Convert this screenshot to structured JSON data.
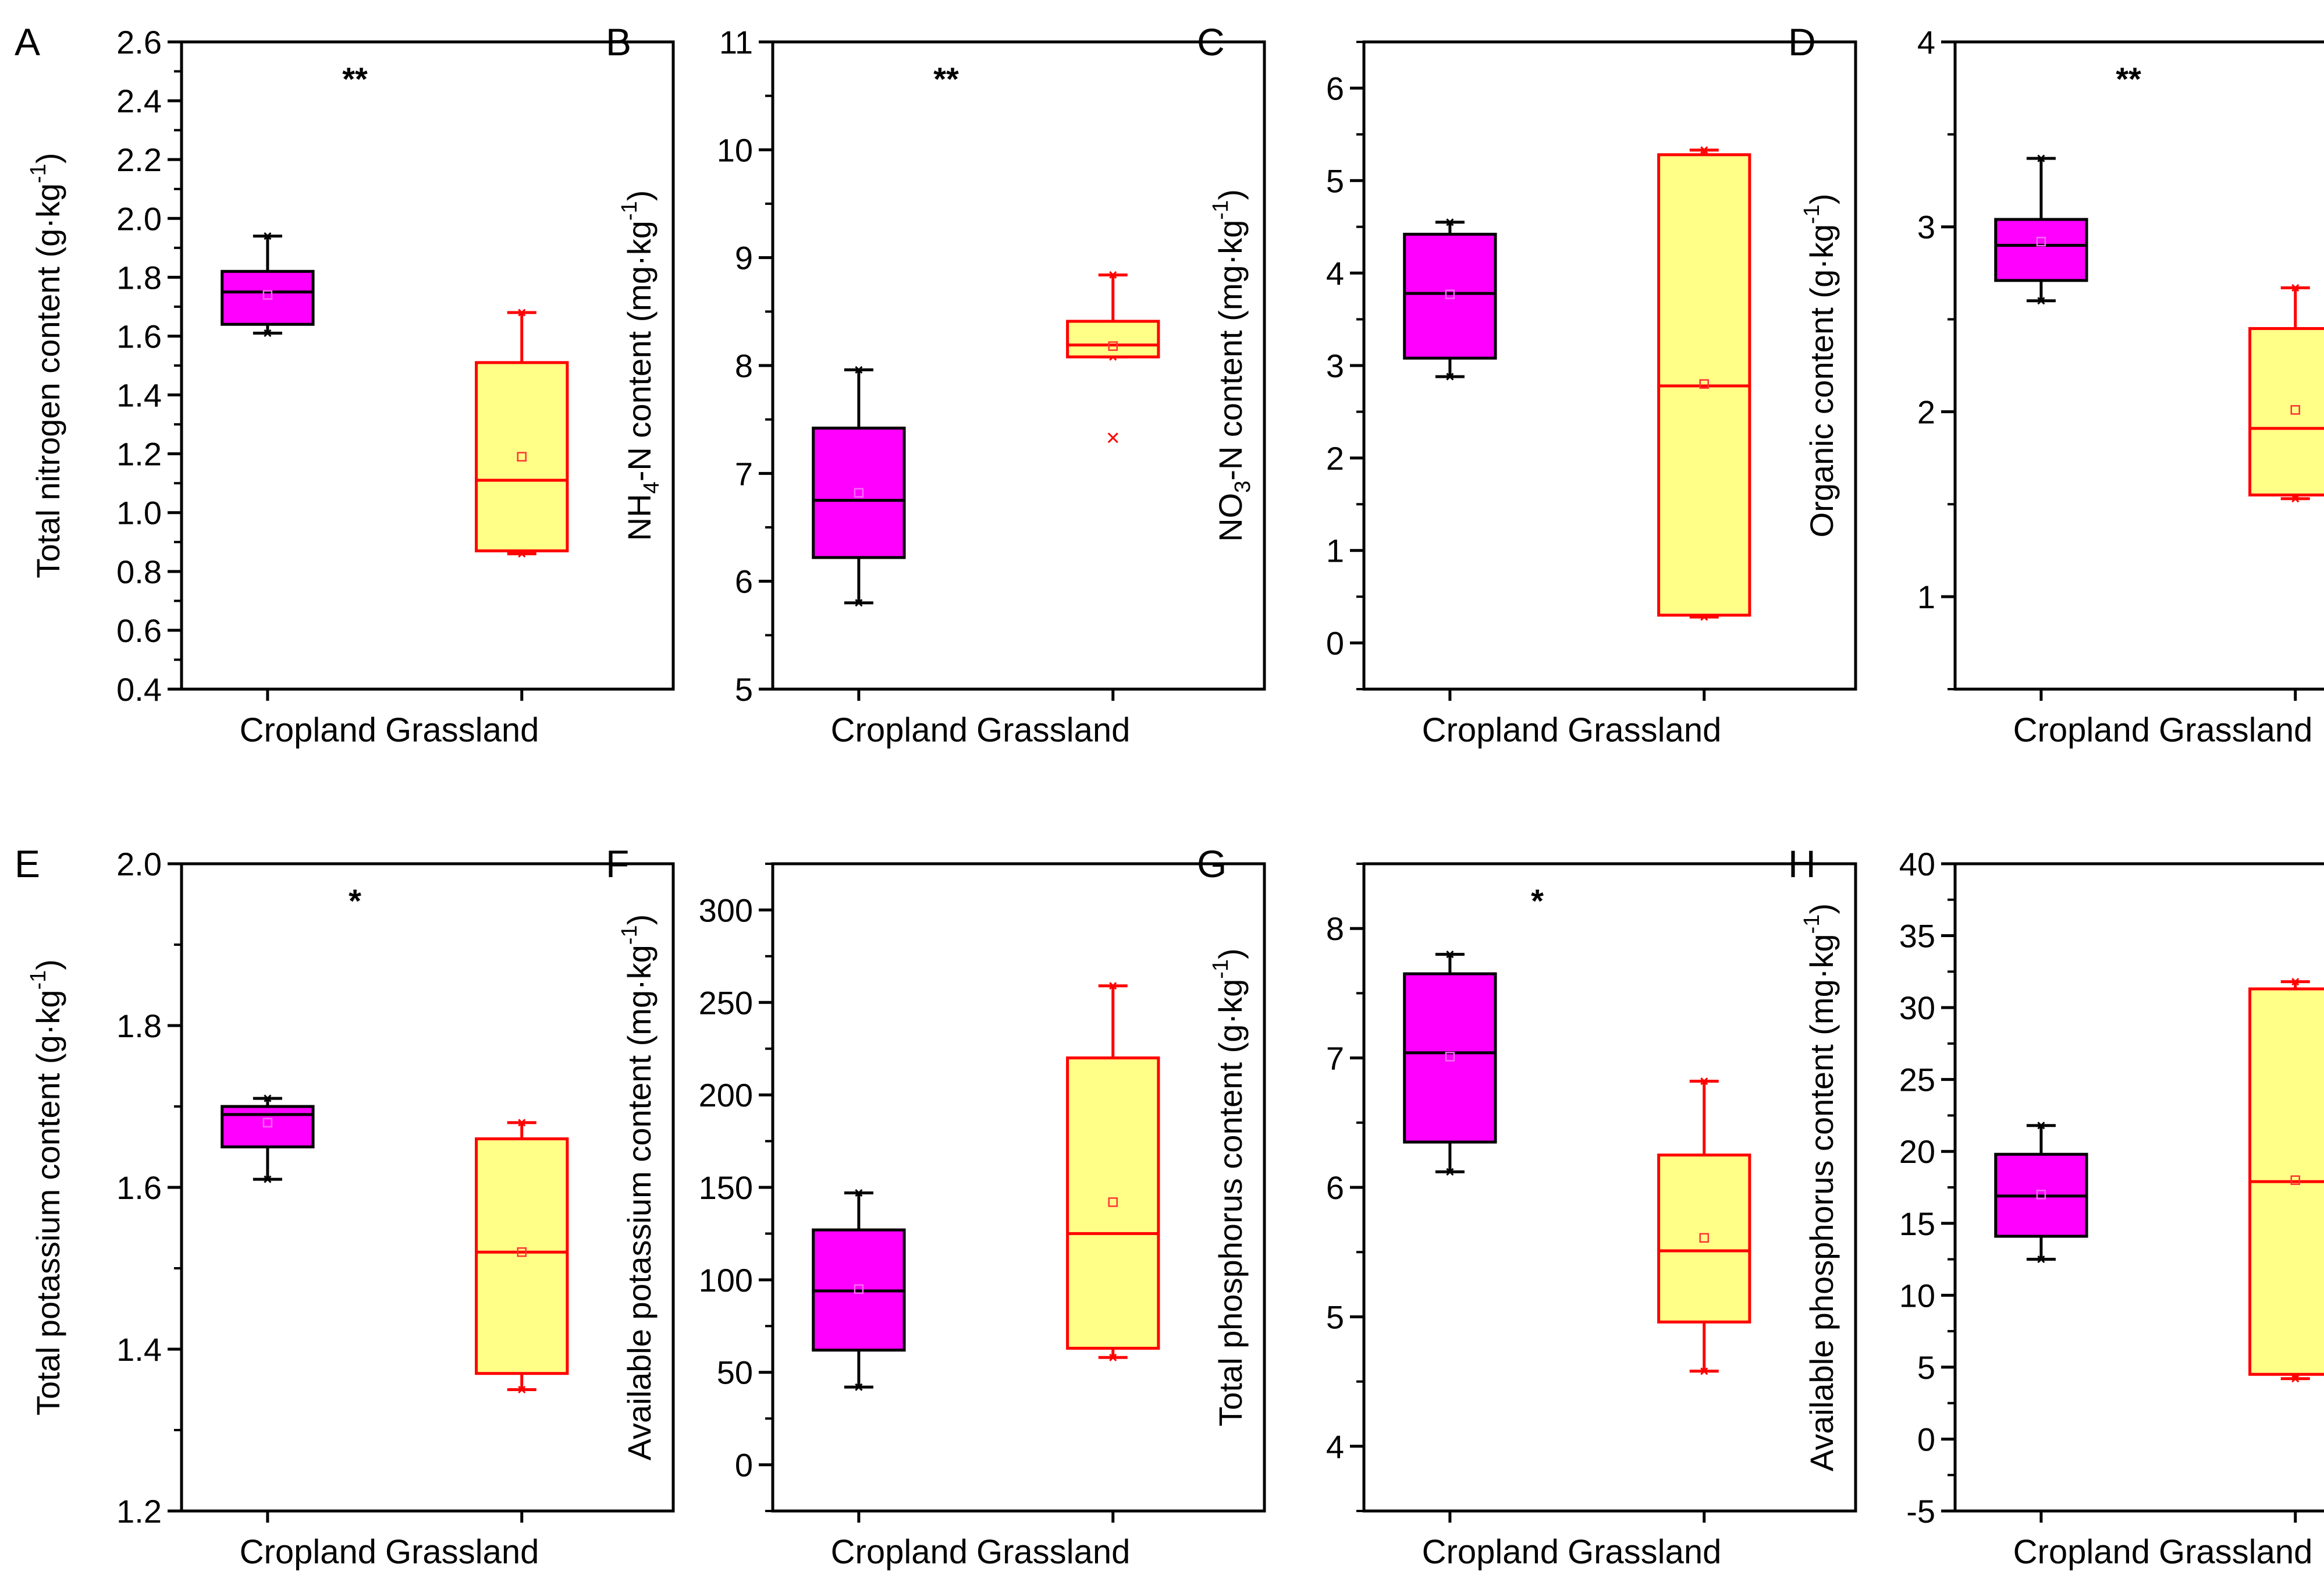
{
  "colors": {
    "cropland_fill": "#ff00ff",
    "cropland_stroke": "#000000",
    "grassland_fill": "#ffff88",
    "grassland_stroke": "#ff0000"
  },
  "chart_data": [
    {
      "type": "box",
      "panel": "A",
      "ylabel": "Total nitrogen content (g·kg",
      "ylabel_sup": "-1",
      "ylabel_tail": ")",
      "ylim": [
        0.4,
        2.6
      ],
      "yticks": [
        "0.4",
        "0.6",
        "0.8",
        "1.0",
        "1.2",
        "1.4",
        "1.6",
        "1.8",
        "2.0",
        "2.2",
        "2.4",
        "2.6"
      ],
      "categories": [
        "Cropland",
        "Grassland"
      ],
      "significance": "**",
      "boxes": [
        {
          "name": "Cropland",
          "min": 1.61,
          "q1": 1.64,
          "median": 1.75,
          "q3": 1.82,
          "max": 1.94,
          "mean": 1.74
        },
        {
          "name": "Grassland",
          "min": 0.86,
          "q1": 0.87,
          "median": 1.11,
          "q3": 1.51,
          "max": 1.68,
          "mean": 1.19
        }
      ]
    },
    {
      "type": "box",
      "panel": "B",
      "ylabel": "NH",
      "ylabel_sub": "4",
      "ylabel_tail": "-N content (mg·kg",
      "ylabel_sup": "-1",
      "ylabel_end": ")",
      "ylim": [
        5,
        11
      ],
      "yticks": [
        "5",
        "6",
        "7",
        "8",
        "9",
        "10",
        "11"
      ],
      "categories": [
        "Cropland",
        "Grassland"
      ],
      "significance": "**",
      "boxes": [
        {
          "name": "Cropland",
          "min": 5.8,
          "q1": 6.22,
          "median": 6.75,
          "q3": 7.42,
          "max": 7.96,
          "mean": 6.82
        },
        {
          "name": "Grassland",
          "min": 8.08,
          "q1": 8.08,
          "median": 8.19,
          "q3": 8.41,
          "max": 8.84,
          "mean": 8.18,
          "outliers": [
            7.33
          ]
        }
      ]
    },
    {
      "type": "box",
      "panel": "C",
      "ylabel": "NO",
      "ylabel_sub": "3",
      "ylabel_tail": "-N content (mg·kg",
      "ylabel_sup": "-1",
      "ylabel_end": ")",
      "ylim": [
        -0.5,
        6.5
      ],
      "yticks": [
        "0",
        "1",
        "2",
        "3",
        "4",
        "5",
        "6"
      ],
      "categories": [
        "Cropland",
        "Grassland"
      ],
      "significance": "",
      "boxes": [
        {
          "name": "Cropland",
          "min": 2.88,
          "q1": 3.08,
          "median": 3.78,
          "q3": 4.42,
          "max": 4.55,
          "mean": 3.77
        },
        {
          "name": "Grassland",
          "min": 0.28,
          "q1": 0.3,
          "median": 2.78,
          "q3": 5.28,
          "max": 5.33,
          "mean": 2.8
        }
      ]
    },
    {
      "type": "box",
      "panel": "D",
      "ylabel": "Organic content (g·kg",
      "ylabel_sup": "-1",
      "ylabel_tail": ")",
      "ylim": [
        0.5,
        4
      ],
      "yticks": [
        "1",
        "2",
        "3",
        "4"
      ],
      "categories": [
        "Cropland",
        "Grassland"
      ],
      "significance": "**",
      "boxes": [
        {
          "name": "Cropland",
          "min": 2.6,
          "q1": 2.71,
          "median": 2.9,
          "q3": 3.04,
          "max": 3.37,
          "mean": 2.92
        },
        {
          "name": "Grassland",
          "min": 1.53,
          "q1": 1.55,
          "median": 1.91,
          "q3": 2.45,
          "max": 2.67,
          "mean": 2.01
        }
      ]
    },
    {
      "type": "box",
      "panel": "E",
      "ylabel": "Total potassium content (g·kg",
      "ylabel_sup": "-1",
      "ylabel_tail": ")",
      "ylim": [
        1.2,
        2.0
      ],
      "yticks": [
        "1.2",
        "1.4",
        "1.6",
        "1.8",
        "2.0"
      ],
      "categories": [
        "Cropland",
        "Grassland"
      ],
      "significance": "*",
      "boxes": [
        {
          "name": "Cropland",
          "min": 1.61,
          "q1": 1.65,
          "median": 1.69,
          "q3": 1.7,
          "max": 1.71,
          "mean": 1.68
        },
        {
          "name": "Grassland",
          "min": 1.35,
          "q1": 1.37,
          "median": 1.52,
          "q3": 1.66,
          "max": 1.68,
          "mean": 1.52
        }
      ]
    },
    {
      "type": "box",
      "panel": "F",
      "ylabel": "Available potassium content (mg·kg",
      "ylabel_sup": "-1",
      "ylabel_tail": ")",
      "ylim": [
        -25,
        325
      ],
      "yticks": [
        "0",
        "50",
        "100",
        "150",
        "200",
        "250",
        "300"
      ],
      "categories": [
        "Cropland",
        "Grassland"
      ],
      "significance": "",
      "boxes": [
        {
          "name": "Cropland",
          "min": 42,
          "q1": 62,
          "median": 94,
          "q3": 127,
          "max": 147,
          "mean": 95
        },
        {
          "name": "Grassland",
          "min": 58,
          "q1": 63,
          "median": 125,
          "q3": 220,
          "max": 259,
          "mean": 142
        }
      ]
    },
    {
      "type": "box",
      "panel": "G",
      "ylabel": "Total phosphorus content (g·kg",
      "ylabel_sup": "-1",
      "ylabel_tail": ")",
      "ylim": [
        3.5,
        8.5
      ],
      "yticks": [
        "4",
        "5",
        "6",
        "7",
        "8"
      ],
      "categories": [
        "Cropland",
        "Grassland"
      ],
      "significance": "*",
      "boxes": [
        {
          "name": "Cropland",
          "min": 6.12,
          "q1": 6.35,
          "median": 7.04,
          "q3": 7.65,
          "max": 7.8,
          "mean": 7.01
        },
        {
          "name": "Grassland",
          "min": 4.58,
          "q1": 4.96,
          "median": 5.51,
          "q3": 6.25,
          "max": 6.82,
          "mean": 5.61
        }
      ]
    },
    {
      "type": "box",
      "panel": "H",
      "ylabel": "Available phosphorus content (mg·kg",
      "ylabel_sup": "-1",
      "ylabel_tail": ")",
      "ylim": [
        -5,
        40
      ],
      "yticks": [
        "-5",
        "0",
        "5",
        "10",
        "15",
        "20",
        "25",
        "30",
        "35",
        "40"
      ],
      "categories": [
        "Cropland",
        "Grassland"
      ],
      "significance": "",
      "boxes": [
        {
          "name": "Cropland",
          "min": 12.5,
          "q1": 14.1,
          "median": 16.9,
          "q3": 19.8,
          "max": 21.8,
          "mean": 17.0
        },
        {
          "name": "Grassland",
          "min": 4.2,
          "q1": 4.5,
          "median": 17.9,
          "q3": 31.3,
          "max": 31.8,
          "mean": 18.0
        }
      ]
    }
  ]
}
